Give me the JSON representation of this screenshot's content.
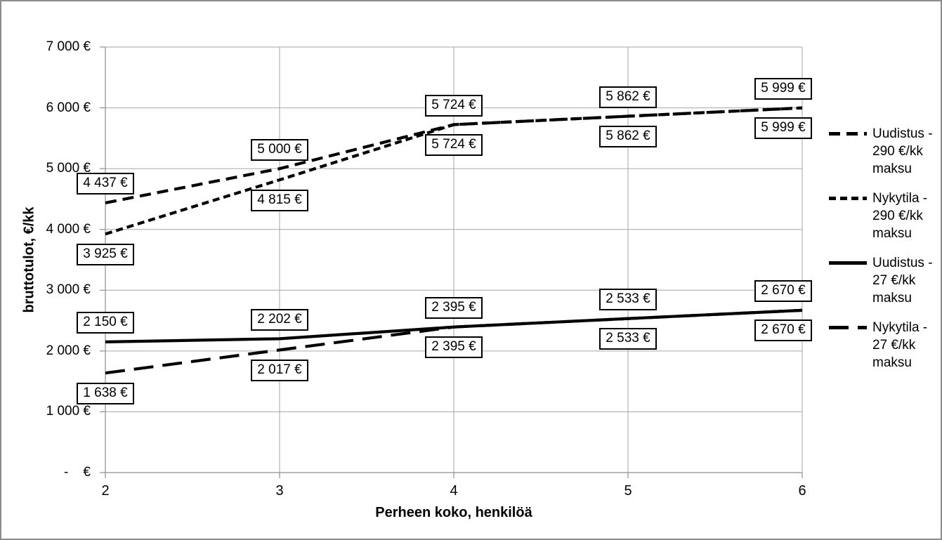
{
  "chart_data": {
    "type": "line",
    "title": "",
    "xlabel": "Perheen koko, henkilöä",
    "ylabel": "bruttotulot, €/kk",
    "x": [
      2,
      3,
      4,
      5,
      6
    ],
    "xtick_labels": [
      "2",
      "3",
      "4",
      "5",
      "6"
    ],
    "xlim": [
      2,
      6
    ],
    "ylim": [
      0,
      7000
    ],
    "ytick_interval": 1000,
    "ytick_labels": [
      "-    €",
      "1 000 €",
      "2 000 €",
      "3 000 €",
      "4 000 €",
      "5 000 €",
      "6 000 €",
      "7 000 €"
    ],
    "grid": true,
    "legend_position": "right",
    "series": [
      {
        "name": "Uudistus - 290 €/kk maksu",
        "legend_lines": [
          "Uudistus -",
          "290 €/kk",
          "maksu"
        ],
        "line_style": "dashed-medium",
        "values": [
          4437,
          5000,
          5724,
          5862,
          5999
        ],
        "data_labels": [
          "4 437 €",
          "5 000 €",
          "5 724 €",
          "5 862 €",
          "5 999 €"
        ],
        "label_side": "above"
      },
      {
        "name": "Nykytila - 290 €/kk maksu",
        "legend_lines": [
          "Nykytila -",
          "290 €/kk",
          "maksu"
        ],
        "line_style": "dashed-short",
        "values": [
          3925,
          4815,
          5724,
          5862,
          5999
        ],
        "data_labels": [
          "3 925 €",
          "4 815 €",
          "5 724 €",
          "5 862 €",
          "5 999 €"
        ],
        "label_side": "below"
      },
      {
        "name": "Uudistus - 27 €/kk maksu",
        "legend_lines": [
          "Uudistus -",
          "27 €/kk",
          "maksu"
        ],
        "line_style": "solid",
        "values": [
          2150,
          2202,
          2395,
          2533,
          2670
        ],
        "data_labels": [
          "2 150 €",
          "2 202 €",
          "2 395 €",
          "2 533 €",
          "2 670 €"
        ],
        "label_side": "above"
      },
      {
        "name": "Nykytila - 27 €/kk maksu",
        "legend_lines": [
          "Nykytila -",
          "27 €/kk",
          "maksu"
        ],
        "line_style": "dashed-long",
        "values": [
          1638,
          2017,
          2395,
          2533,
          2670
        ],
        "data_labels": [
          "1 638 €",
          "2 017 €",
          "2 395 €",
          "2 533 €",
          "2 670 €"
        ],
        "label_side": "below"
      }
    ]
  },
  "colors": {
    "series_line": "#000000",
    "gridline": "#a6a6a6",
    "axis": "#8e8e8e",
    "text": "#000000",
    "label_border": "#000000",
    "background": "#ffffff",
    "frame_border": "#8c8c8c"
  }
}
